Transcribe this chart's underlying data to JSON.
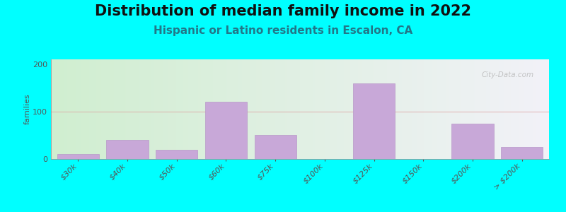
{
  "title": "Distribution of median family income in 2022",
  "subtitle": "Hispanic or Latino residents in Escalon, CA",
  "ylabel": "families",
  "background_outer": "#00FFFF",
  "bar_color": "#C8A8D8",
  "bar_edge_color": "#B898C8",
  "plot_bg_left": "#D0EED0",
  "plot_bg_right": "#F2F2F8",
  "grid_color": "#DDA0A0",
  "categories": [
    "$30k",
    "$40k",
    "$50k",
    "$60k",
    "$75k",
    "$100k",
    "$125k",
    "$150k",
    "$200k",
    "> $200k"
  ],
  "values": [
    10,
    40,
    20,
    120,
    50,
    0,
    160,
    0,
    75,
    25
  ],
  "ylim": [
    0,
    210
  ],
  "yticks": [
    0,
    100,
    200
  ],
  "title_fontsize": 15,
  "subtitle_fontsize": 11,
  "subtitle_color": "#227788",
  "axis_label_fontsize": 8,
  "tick_fontsize": 8,
  "watermark": "City-Data.com"
}
